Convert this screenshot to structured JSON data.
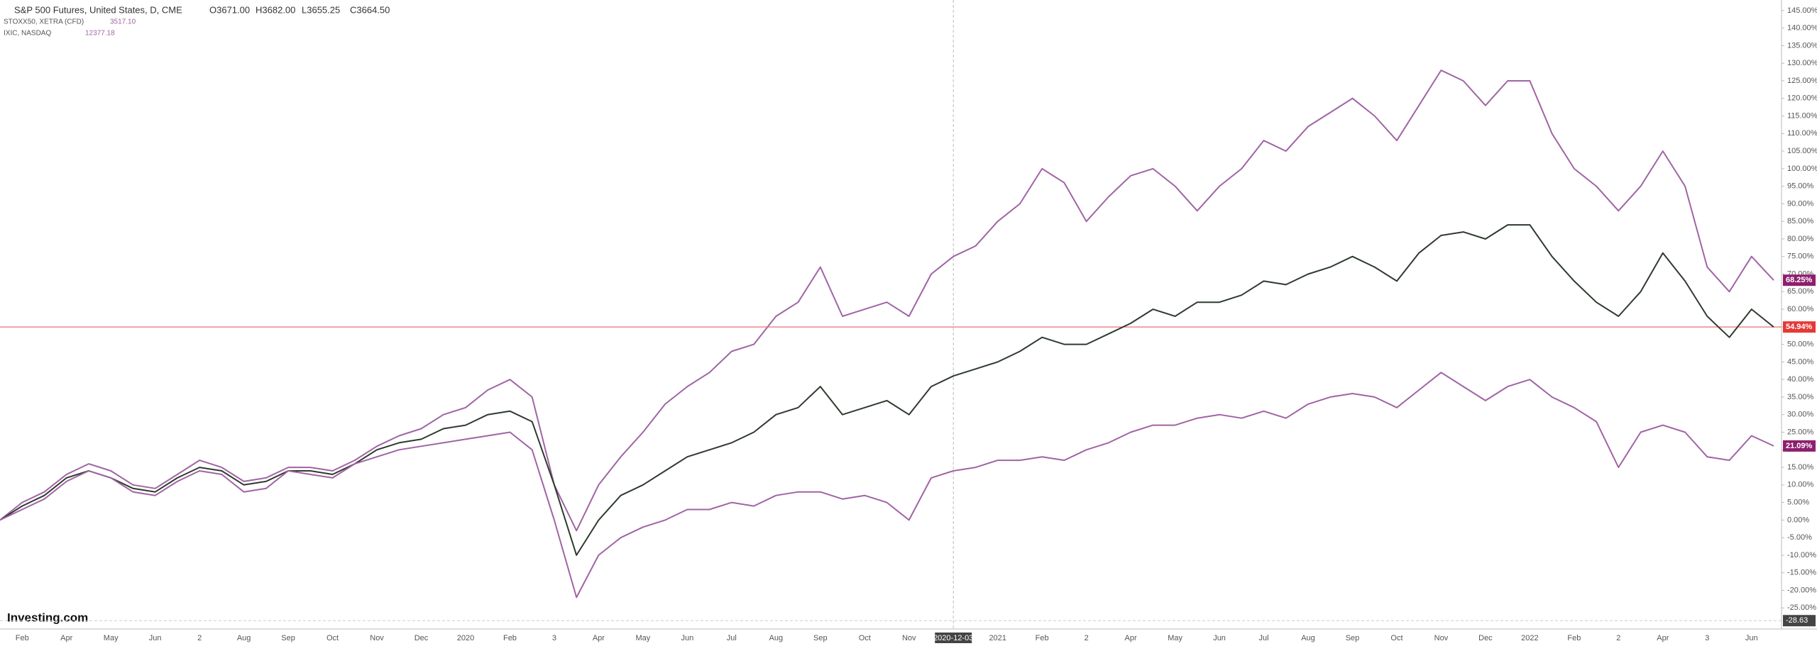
{
  "header": {
    "title": "S&P 500 Futures, United States, D, CME",
    "open": "O3671.00",
    "high": "H3682.00",
    "low": "L3655.25",
    "close": "C3664.50",
    "studies": [
      {
        "name": "STOXX50, XETRA (CFD)",
        "value": "3517.10"
      },
      {
        "name": "IXIC, NASDAQ",
        "value": "12377.18"
      }
    ],
    "logo": "Investing.com"
  },
  "chart_data": {
    "type": "line",
    "categories": [
      null,
      "Feb",
      null,
      "Apr",
      null,
      "May",
      null,
      "Jun",
      null,
      "2",
      null,
      "Aug",
      null,
      "Sep",
      null,
      "Oct",
      null,
      "Nov",
      null,
      "Dec",
      null,
      "2020",
      null,
      "Feb",
      null,
      "3",
      null,
      "Apr",
      null,
      "May",
      null,
      "Jun",
      null,
      "Jul",
      null,
      "Aug",
      null,
      "Sep",
      null,
      "Oct",
      null,
      "Nov",
      null,
      "2020-12-03",
      null,
      "2021",
      null,
      "Feb",
      null,
      "2",
      null,
      "Apr",
      null,
      "May",
      null,
      "Jun",
      null,
      "Jul",
      null,
      "Aug",
      null,
      "Sep",
      null,
      "Oct",
      null,
      "Nov",
      null,
      "Dec",
      null,
      "2022",
      null,
      "Feb",
      null,
      "2",
      null,
      "Apr",
      null,
      "3",
      null,
      "Jun",
      null
    ],
    "series": [
      {
        "name": "IXIC, NASDAQ",
        "color": "#a064a4",
        "badge_color": "#8e1f6e",
        "values": [
          0,
          5,
          8,
          13,
          16,
          14,
          10,
          9,
          13,
          17,
          15,
          11,
          12,
          15,
          15,
          14,
          17,
          21,
          24,
          26,
          30,
          32,
          37,
          40,
          35,
          10,
          -3,
          10,
          18,
          25,
          33,
          38,
          42,
          48,
          50,
          58,
          62,
          72,
          58,
          60,
          62,
          58,
          70,
          75,
          78,
          85,
          90,
          100,
          96,
          85,
          92,
          98,
          100,
          95,
          88,
          95,
          100,
          108,
          105,
          112,
          116,
          120,
          115,
          108,
          118,
          128,
          125,
          118,
          125,
          125,
          110,
          100,
          95,
          88,
          95,
          105,
          95,
          72,
          65,
          75,
          68.25
        ],
        "value_labels": [
          null,
          null,
          null,
          null,
          null,
          null,
          null,
          null,
          null,
          null,
          null,
          null,
          null,
          null,
          null,
          null,
          null,
          null,
          null,
          null,
          null,
          null,
          null,
          null,
          null,
          null,
          null,
          null,
          null,
          null,
          null,
          null,
          null,
          null,
          null,
          null,
          null,
          null,
          null,
          null,
          null,
          null,
          null,
          null,
          null,
          null,
          null,
          null,
          null,
          null,
          null,
          null,
          null,
          null,
          null,
          null,
          null,
          null,
          null,
          null,
          null,
          null,
          null,
          null,
          null,
          null,
          null,
          null,
          null,
          null,
          null,
          null,
          null,
          null,
          null,
          null,
          null,
          null,
          null,
          null,
          "68.25%"
        ]
      },
      {
        "name": "S&P 500 Futures, United States, D, CME",
        "color": "#2f3a2f",
        "badge_color": "#e53935",
        "price_line": true,
        "values": [
          0,
          4,
          7,
          12,
          14,
          12,
          9,
          8,
          12,
          15,
          14,
          10,
          11,
          14,
          14,
          13,
          16,
          20,
          22,
          23,
          26,
          27,
          30,
          31,
          28,
          10,
          -10,
          0,
          7,
          10,
          14,
          18,
          20,
          22,
          25,
          30,
          32,
          38,
          30,
          32,
          34,
          30,
          38,
          41,
          43,
          45,
          48,
          52,
          50,
          50,
          53,
          56,
          60,
          58,
          62,
          62,
          64,
          68,
          67,
          70,
          72,
          75,
          72,
          68,
          76,
          81,
          82,
          80,
          84,
          84,
          75,
          68,
          62,
          58,
          65,
          76,
          68,
          58,
          52,
          60,
          54.94
        ],
        "value_labels": [
          null,
          null,
          null,
          null,
          null,
          null,
          null,
          null,
          null,
          null,
          null,
          null,
          null,
          null,
          null,
          null,
          null,
          null,
          null,
          null,
          null,
          null,
          null,
          null,
          null,
          null,
          null,
          null,
          null,
          null,
          null,
          null,
          null,
          null,
          null,
          null,
          null,
          null,
          null,
          null,
          null,
          null,
          null,
          null,
          null,
          null,
          null,
          null,
          null,
          null,
          null,
          null,
          null,
          null,
          null,
          null,
          null,
          null,
          null,
          null,
          null,
          null,
          null,
          null,
          null,
          null,
          null,
          null,
          null,
          null,
          null,
          null,
          null,
          null,
          null,
          null,
          null,
          null,
          null,
          null,
          "54.94%"
        ]
      },
      {
        "name": "STOXX50, XETRA (CFD)",
        "color": "#a064a4",
        "badge_color": "#8e1f6e",
        "values": [
          0,
          3,
          6,
          11,
          14,
          12,
          8,
          7,
          11,
          14,
          13,
          8,
          9,
          14,
          13,
          12,
          16,
          18,
          20,
          21,
          22,
          23,
          24,
          25,
          20,
          0,
          -22,
          -10,
          -5,
          -2,
          0,
          3,
          3,
          5,
          4,
          7,
          8,
          8,
          6,
          7,
          5,
          0,
          12,
          14,
          15,
          17,
          17,
          18,
          17,
          20,
          22,
          25,
          27,
          27,
          29,
          30,
          29,
          31,
          29,
          33,
          35,
          36,
          35,
          32,
          37,
          42,
          38,
          34,
          38,
          40,
          35,
          32,
          28,
          15,
          25,
          27,
          25,
          18,
          17,
          24,
          21.09
        ],
        "value_labels": [
          null,
          null,
          null,
          null,
          null,
          null,
          null,
          null,
          null,
          null,
          null,
          null,
          null,
          null,
          null,
          null,
          null,
          null,
          null,
          null,
          null,
          null,
          null,
          null,
          null,
          null,
          null,
          null,
          null,
          null,
          null,
          null,
          null,
          null,
          null,
          null,
          null,
          null,
          null,
          null,
          null,
          null,
          null,
          null,
          null,
          null,
          null,
          null,
          null,
          null,
          null,
          null,
          null,
          null,
          null,
          null,
          null,
          null,
          null,
          null,
          null,
          null,
          null,
          null,
          null,
          null,
          null,
          null,
          null,
          null,
          null,
          null,
          null,
          null,
          null,
          null,
          null,
          null,
          null,
          null,
          "21.09%"
        ]
      }
    ],
    "ylim": [
      -31,
      148
    ],
    "yticks": [
      {
        "value": -25,
        "label": "-25.00%"
      },
      {
        "value": -20,
        "label": "-20.00%"
      },
      {
        "value": -15,
        "label": "-15.00%"
      },
      {
        "value": -10,
        "label": "-10.00%"
      },
      {
        "value": -5,
        "label": "-5.00%"
      },
      {
        "value": 0,
        "label": "0.00%"
      },
      {
        "value": 5,
        "label": "5.00%"
      },
      {
        "value": 10,
        "label": "10.00%"
      },
      {
        "value": 15,
        "label": "15.00%"
      },
      {
        "value": 20,
        "label": "20.00%"
      },
      {
        "value": 25,
        "label": "25.00%"
      },
      {
        "value": 30,
        "label": "30.00%"
      },
      {
        "value": 35,
        "label": "35.00%"
      },
      {
        "value": 40,
        "label": "40.00%"
      },
      {
        "value": 45,
        "label": "45.00%"
      },
      {
        "value": 50,
        "label": "50.00%"
      },
      {
        "value": 55,
        "label": "55.00%"
      },
      {
        "value": 60,
        "label": "60.00%"
      },
      {
        "value": 65,
        "label": "65.00%"
      },
      {
        "value": 70,
        "label": "70.00%"
      },
      {
        "value": 75,
        "label": "75.00%"
      },
      {
        "value": 80,
        "label": "80.00%"
      },
      {
        "value": 85,
        "label": "85.00%"
      },
      {
        "value": 90,
        "label": "90.00%"
      },
      {
        "value": 95,
        "label": "95.00%"
      },
      {
        "value": 100,
        "label": "100.00%"
      },
      {
        "value": 105,
        "label": "105.00%"
      },
      {
        "value": 110,
        "label": "110.00%"
      },
      {
        "value": 115,
        "label": "115.00%"
      },
      {
        "value": 120,
        "label": "120.00%"
      },
      {
        "value": 125,
        "label": "125.00%"
      },
      {
        "value": 130,
        "label": "130.00%"
      },
      {
        "value": 135,
        "label": "135.00%"
      },
      {
        "value": 140,
        "label": "140.00%"
      },
      {
        "value": 145,
        "label": "145.00%"
      }
    ],
    "grid": false,
    "crosshair": {
      "x": "2020-12-03",
      "y": -28.63
    }
  }
}
